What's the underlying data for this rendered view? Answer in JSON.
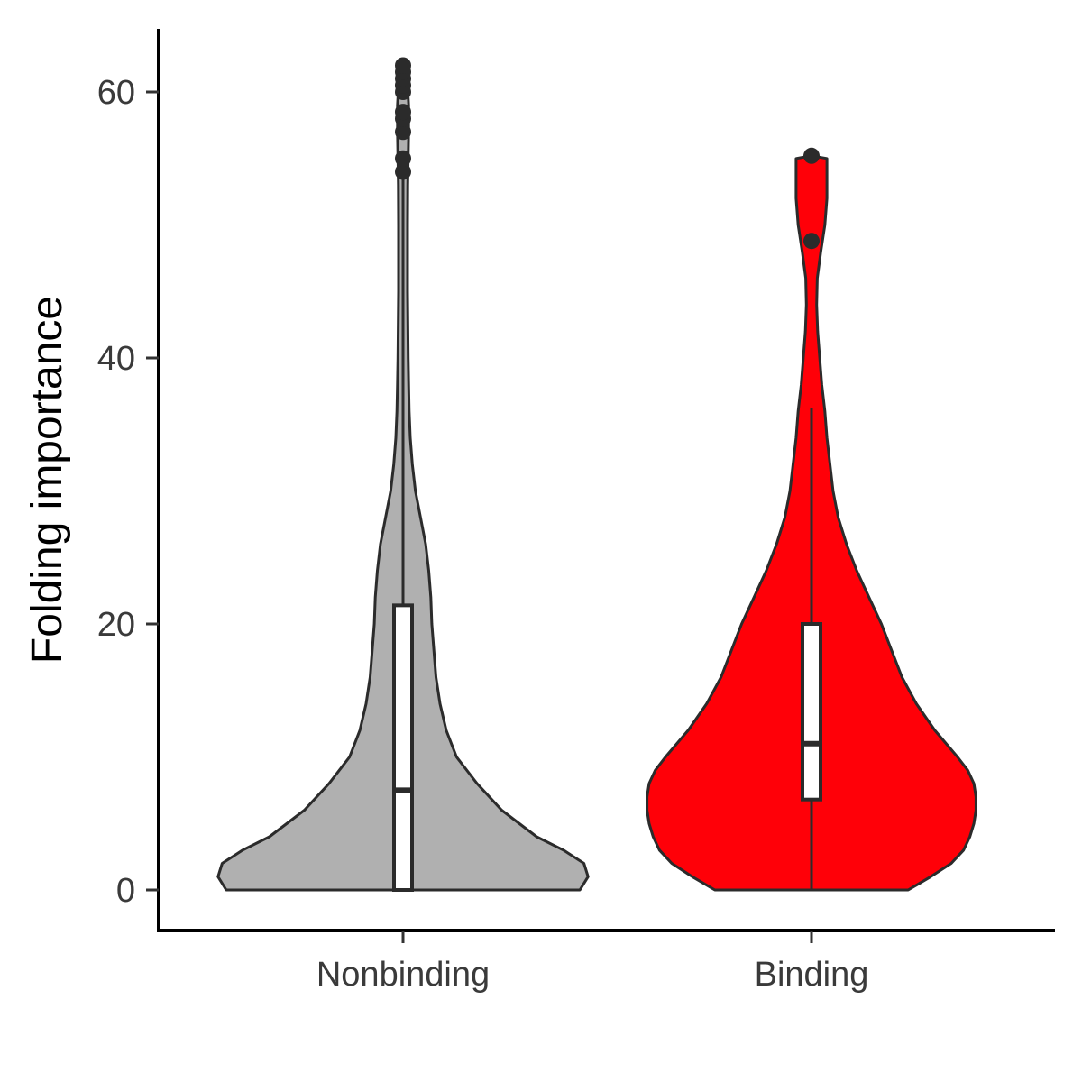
{
  "chart_data": {
    "type": "violin",
    "title": "",
    "xlabel": "",
    "ylabel": "Folding importance",
    "ylim": [
      -3,
      65
    ],
    "yticks": [
      0,
      20,
      40,
      60
    ],
    "categories": [
      "Nonbinding",
      "Binding"
    ],
    "grid": false,
    "legend": "none",
    "series": [
      {
        "category": "Nonbinding",
        "color": "#b0b0b0",
        "box": {
          "min": 0,
          "q1": 0,
          "median": 7.5,
          "q3": 21.4,
          "whisker_high": 53.5
        },
        "outliers": [
          54,
          55,
          57,
          58,
          58.5,
          60,
          60.5,
          61,
          61.5,
          62
        ],
        "density": [
          [
            0,
            0.86
          ],
          [
            1,
            0.9
          ],
          [
            2,
            0.88
          ],
          [
            3,
            0.78
          ],
          [
            4,
            0.65
          ],
          [
            6,
            0.48
          ],
          [
            8,
            0.36
          ],
          [
            10,
            0.26
          ],
          [
            12,
            0.21
          ],
          [
            14,
            0.18
          ],
          [
            16,
            0.16
          ],
          [
            18,
            0.15
          ],
          [
            20,
            0.14
          ],
          [
            22,
            0.135
          ],
          [
            24,
            0.125
          ],
          [
            26,
            0.11
          ],
          [
            28,
            0.085
          ],
          [
            30,
            0.06
          ],
          [
            32,
            0.045
          ],
          [
            34,
            0.035
          ],
          [
            36,
            0.03
          ],
          [
            38,
            0.027
          ],
          [
            40,
            0.025
          ],
          [
            45,
            0.022
          ],
          [
            50,
            0.022
          ],
          [
            53,
            0.023
          ],
          [
            55,
            0.025
          ],
          [
            57,
            0.027
          ],
          [
            59,
            0.027
          ],
          [
            61,
            0.02
          ],
          [
            62,
            0.0
          ]
        ]
      },
      {
        "category": "Binding",
        "color": "#ff0008",
        "box": {
          "min": 0,
          "q1": 6.8,
          "median": 11,
          "q3": 20,
          "whisker_high": 36.2
        },
        "outliers": [
          48.8,
          55.2
        ],
        "density": [
          [
            0,
            0.47
          ],
          [
            1,
            0.58
          ],
          [
            2,
            0.68
          ],
          [
            3,
            0.74
          ],
          [
            4,
            0.77
          ],
          [
            5,
            0.79
          ],
          [
            6,
            0.8
          ],
          [
            7,
            0.8
          ],
          [
            8,
            0.79
          ],
          [
            9,
            0.76
          ],
          [
            10,
            0.71
          ],
          [
            12,
            0.6
          ],
          [
            14,
            0.51
          ],
          [
            16,
            0.44
          ],
          [
            18,
            0.39
          ],
          [
            20,
            0.34
          ],
          [
            22,
            0.28
          ],
          [
            24,
            0.22
          ],
          [
            26,
            0.17
          ],
          [
            28,
            0.13
          ],
          [
            30,
            0.105
          ],
          [
            32,
            0.09
          ],
          [
            34,
            0.075
          ],
          [
            36,
            0.065
          ],
          [
            38,
            0.05
          ],
          [
            40,
            0.04
          ],
          [
            42,
            0.03
          ],
          [
            44,
            0.025
          ],
          [
            46,
            0.028
          ],
          [
            48,
            0.045
          ],
          [
            50,
            0.065
          ],
          [
            52,
            0.075
          ],
          [
            54,
            0.075
          ],
          [
            55,
            0.075
          ],
          [
            55.2,
            0.0
          ]
        ]
      }
    ]
  }
}
